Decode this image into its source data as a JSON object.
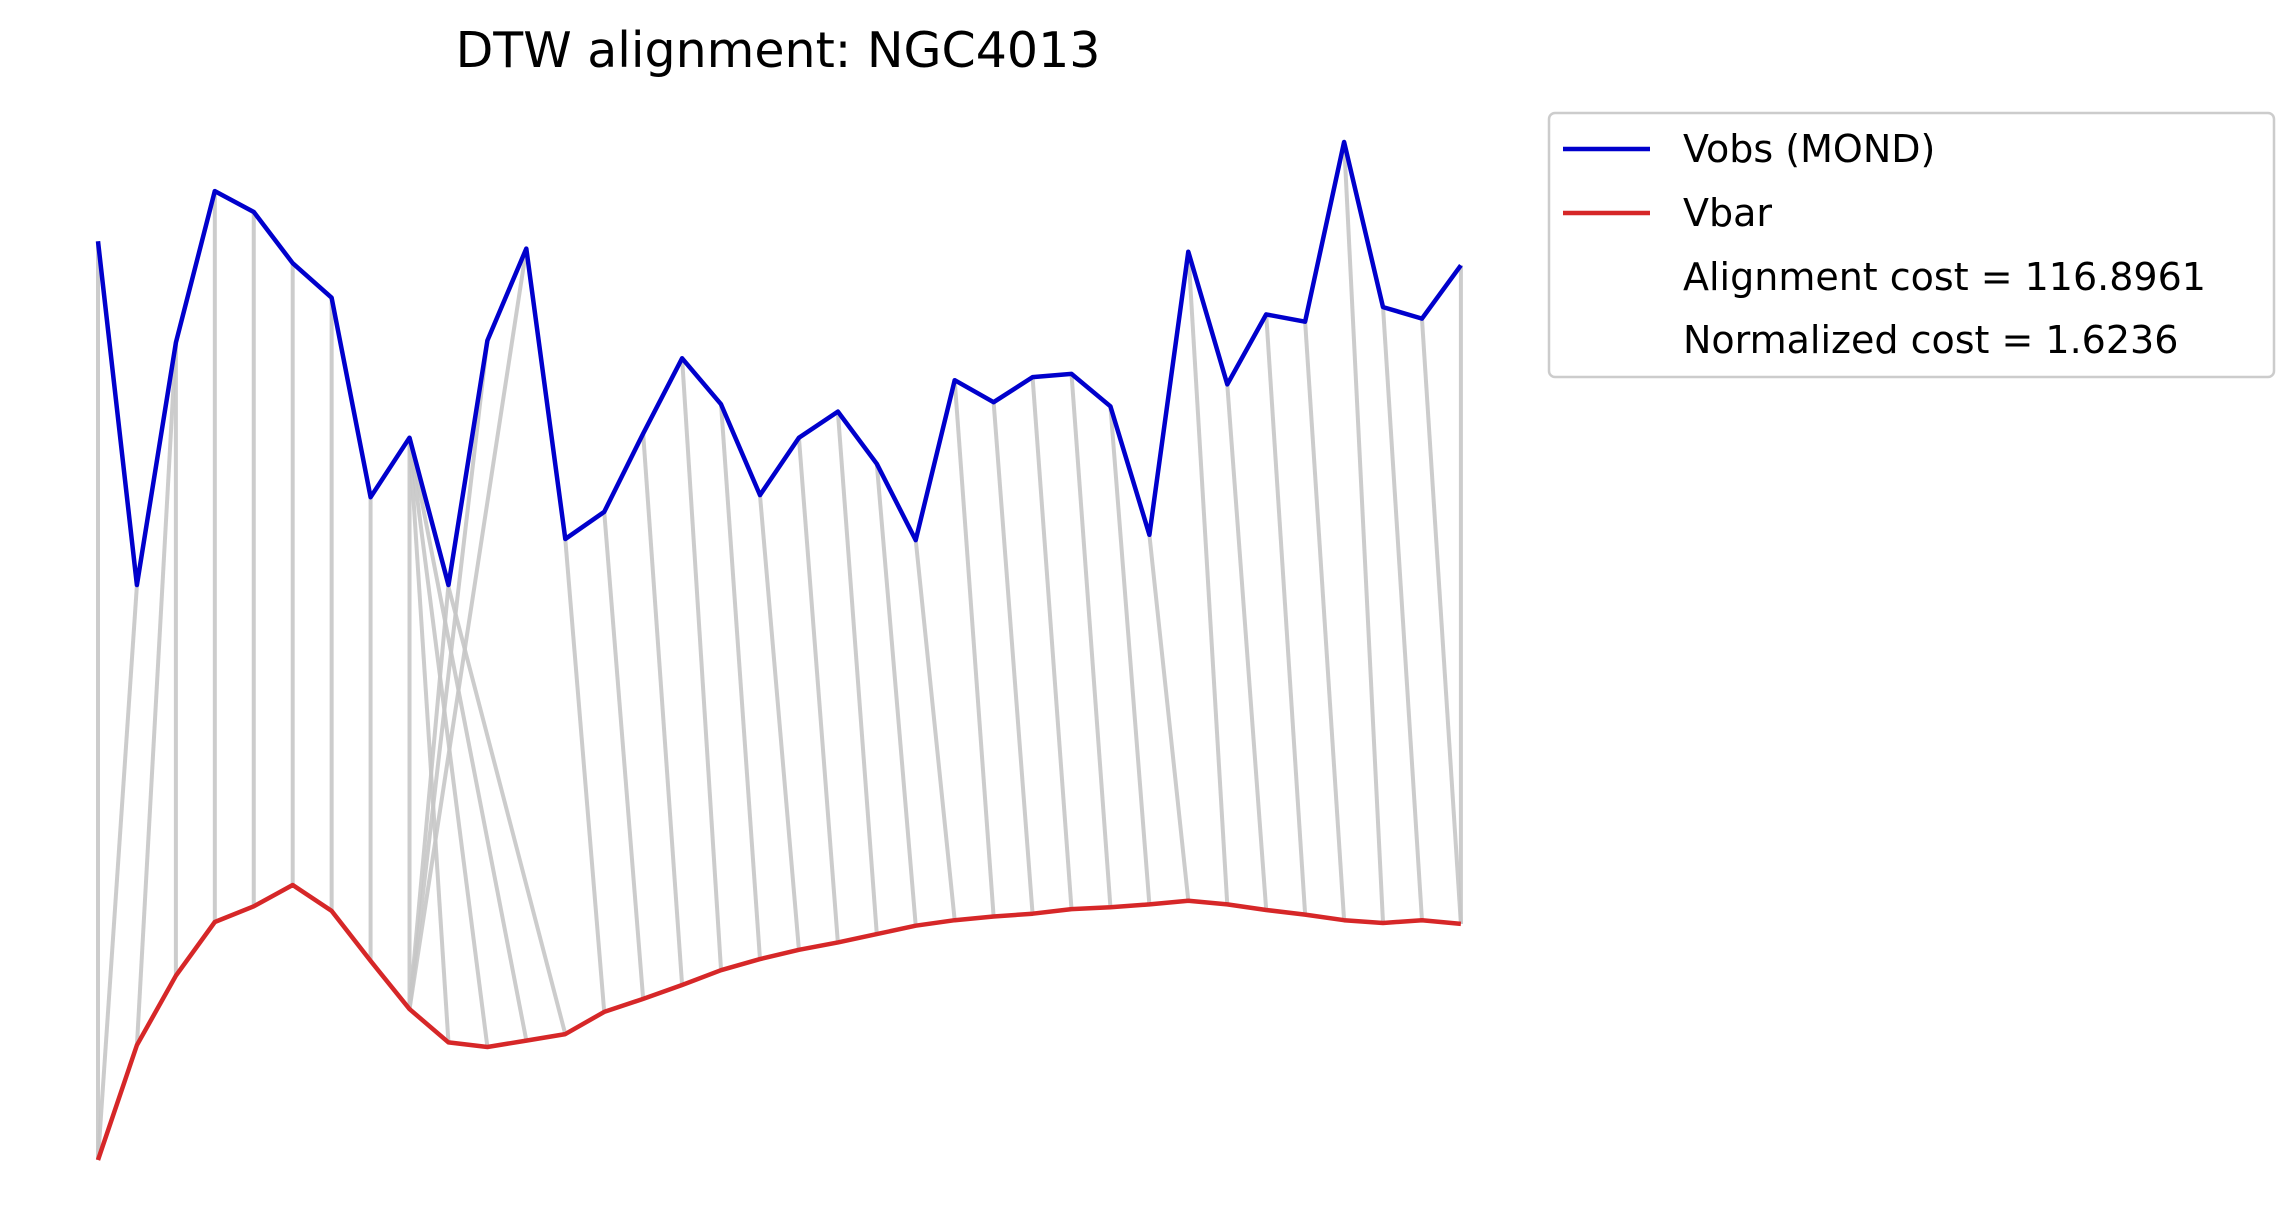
{
  "chart_data": {
    "type": "line",
    "title": "DTW alignment: NGC4013",
    "x": [
      0,
      1,
      2,
      3,
      4,
      5,
      6,
      7,
      8,
      9,
      10,
      11,
      12,
      13,
      14,
      15,
      16,
      17,
      18,
      19,
      20,
      21,
      22,
      23,
      24,
      25,
      26,
      27,
      28,
      29,
      30,
      31,
      32,
      33,
      34,
      35
    ],
    "series": [
      {
        "name": "Vobs (MOND)",
        "color": "#0000cc",
        "values": [
          0.905,
          0.576,
          0.808,
          0.953,
          0.933,
          0.884,
          0.851,
          0.66,
          0.717,
          0.576,
          0.81,
          0.898,
          0.62,
          0.646,
          0.721,
          0.793,
          0.749,
          0.662,
          0.717,
          0.742,
          0.692,
          0.619,
          0.772,
          0.751,
          0.775,
          0.778,
          0.747,
          0.624,
          0.895,
          0.768,
          0.835,
          0.828,
          1.0,
          0.842,
          0.831,
          0.882
        ]
      },
      {
        "name": "Vbar",
        "color": "#d62728",
        "values": [
          0.0,
          0.124,
          0.199,
          0.257,
          0.274,
          0.297,
          0.269,
          0.215,
          0.163,
          0.127,
          0.122,
          0.129,
          0.136,
          0.16,
          0.174,
          0.189,
          0.205,
          0.217,
          0.227,
          0.235,
          0.244,
          0.253,
          0.259,
          0.263,
          0.266,
          0.271,
          0.273,
          0.276,
          0.28,
          0.276,
          0.27,
          0.265,
          0.259,
          0.256,
          0.259,
          0.255
        ]
      }
    ],
    "alignment": {
      "color": "#c7c7c7",
      "pairs": [
        [
          0,
          0
        ],
        [
          1,
          0
        ],
        [
          2,
          1
        ],
        [
          2,
          2
        ],
        [
          3,
          3
        ],
        [
          4,
          4
        ],
        [
          5,
          5
        ],
        [
          6,
          6
        ],
        [
          7,
          7
        ],
        [
          8,
          8
        ],
        [
          8,
          9
        ],
        [
          8,
          10
        ],
        [
          8,
          11
        ],
        [
          8,
          12
        ],
        [
          9,
          8
        ],
        [
          10,
          8
        ],
        [
          11,
          8
        ],
        [
          12,
          13
        ],
        [
          13,
          14
        ],
        [
          14,
          15
        ],
        [
          15,
          16
        ],
        [
          16,
          17
        ],
        [
          17,
          18
        ],
        [
          18,
          19
        ],
        [
          19,
          20
        ],
        [
          20,
          21
        ],
        [
          21,
          22
        ],
        [
          22,
          23
        ],
        [
          23,
          24
        ],
        [
          24,
          25
        ],
        [
          25,
          26
        ],
        [
          26,
          27
        ],
        [
          27,
          28
        ],
        [
          28,
          29
        ],
        [
          29,
          30
        ],
        [
          30,
          31
        ],
        [
          31,
          32
        ],
        [
          32,
          33
        ],
        [
          33,
          34
        ],
        [
          34,
          35
        ],
        [
          35,
          35
        ]
      ]
    },
    "legend": {
      "position": "outside-right-top",
      "entries": [
        "Vobs (MOND)",
        "Vbar"
      ],
      "text_lines": [
        "Alignment cost = 116.8961",
        "Normalized cost = 1.6236"
      ]
    },
    "axes_visible": false,
    "grid": false
  }
}
